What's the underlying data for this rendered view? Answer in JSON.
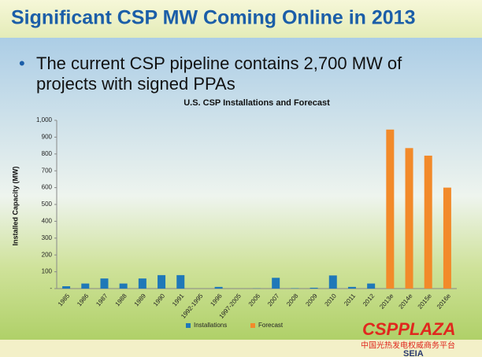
{
  "header": {
    "title": "Significant CSP MW Coming Online in 2013"
  },
  "bullet": {
    "line1": "The current CSP pipeline contains 2,700 MW of",
    "line2": "projects with signed PPAs"
  },
  "watermark": {
    "brand": "CSPPLAZA",
    "tagline": "中国光热发电权威商务平台",
    "logo": "SEIA"
  },
  "chart_data": {
    "type": "bar",
    "title": "U.S. CSP Installations and Forecast",
    "ylabel": "Installed Capacity (MW)",
    "categories": [
      "1985",
      "1986",
      "1987",
      "1988",
      "1989",
      "1990",
      "1991",
      "1992-1995",
      "1996",
      "1997-2005",
      "2006",
      "2007",
      "2008",
      "2009",
      "2010",
      "2011",
      "2012",
      "2013e",
      "2014e",
      "2015e",
      "2016e"
    ],
    "series": [
      {
        "name": "Installations",
        "color": "#1f78b8",
        "values": [
          14,
          30,
          60,
          30,
          60,
          80,
          80,
          0,
          10,
          0,
          1,
          64,
          2,
          5,
          78,
          10,
          30,
          null,
          null,
          null,
          null
        ]
      },
      {
        "name": "Forecast",
        "color": "#f28a2a",
        "values": [
          null,
          null,
          null,
          null,
          null,
          null,
          null,
          null,
          null,
          null,
          null,
          null,
          null,
          null,
          null,
          null,
          null,
          945,
          835,
          790,
          600
        ]
      }
    ],
    "ylim": [
      0,
      1000
    ],
    "yticks": [
      {
        "value": 0,
        "label": "-"
      },
      100,
      200,
      300,
      400,
      500,
      600,
      700,
      800,
      900,
      {
        "value": 1000,
        "label": "1,000"
      }
    ],
    "legend": "bottom"
  }
}
